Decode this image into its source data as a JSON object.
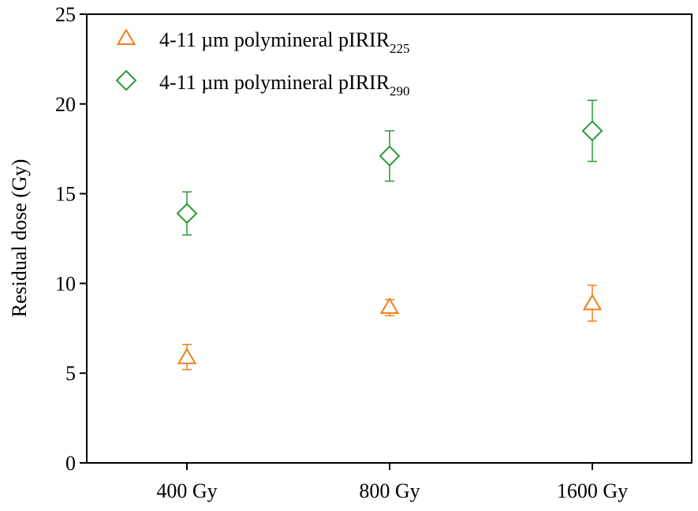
{
  "chart_data": {
    "type": "scatter",
    "categories": [
      "400 Gy",
      "800 Gy",
      "1600 Gy"
    ],
    "ylabel": "Residual dose (Gy)",
    "xlabel": "",
    "ylim": [
      0,
      25
    ],
    "yticks": [
      0,
      5,
      10,
      15,
      20,
      25
    ],
    "grid": false,
    "legend_position": "top-left",
    "series": [
      {
        "name": "4-11 µm polymineral pIRIR225",
        "label_main": "4-11 µm polymineral pIRIR",
        "label_sub": "225",
        "marker": "triangle",
        "color": "#f07f1b",
        "values": [
          5.9,
          8.7,
          8.9
        ],
        "err_low": [
          5.2,
          8.2,
          7.9
        ],
        "err_high": [
          6.6,
          9.1,
          9.9
        ]
      },
      {
        "name": "4-11 µm polymineral pIRIR290",
        "label_main": "4-11 µm polymineral pIRIR",
        "label_sub": "290",
        "marker": "diamond",
        "color": "#2a9838",
        "values": [
          13.9,
          17.1,
          18.5
        ],
        "err_low": [
          12.7,
          15.7,
          16.8
        ],
        "err_high": [
          15.1,
          18.5,
          20.2
        ]
      }
    ]
  }
}
